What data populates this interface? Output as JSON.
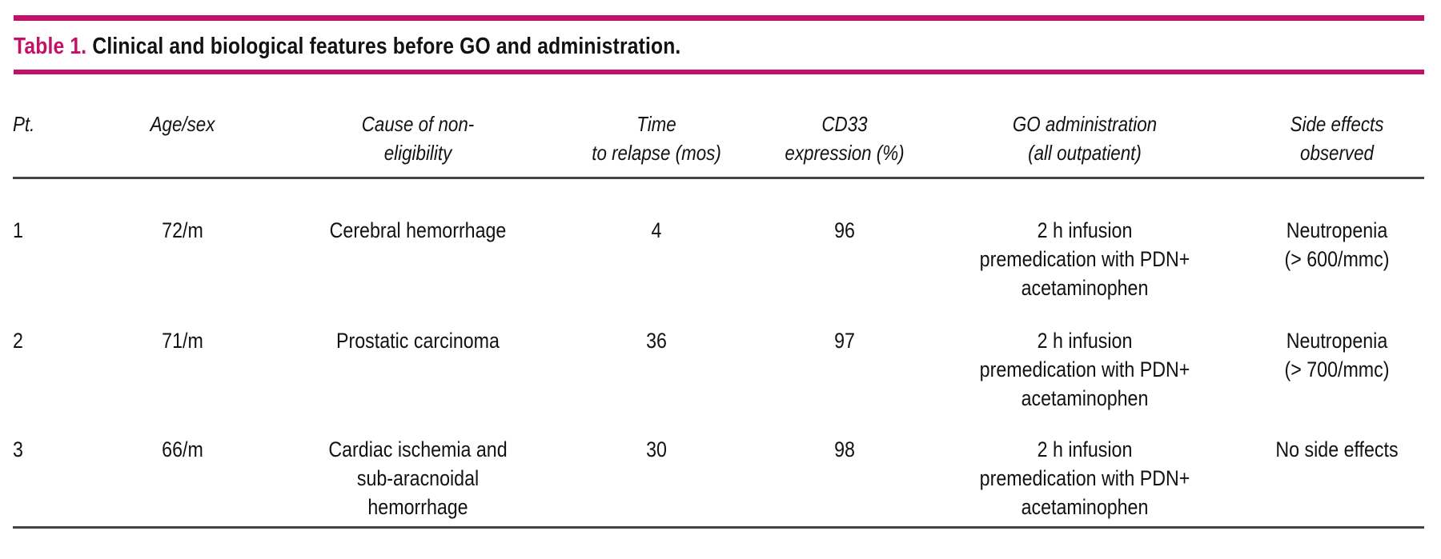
{
  "accent_color": "#c31167",
  "title": {
    "label": "Table 1.",
    "text": "Clinical and biological features before GO and administration."
  },
  "table": {
    "columns": [
      {
        "header": "Pt."
      },
      {
        "header": "Age/sex"
      },
      {
        "header": "Cause of non-\neligibility"
      },
      {
        "header": "Time\nto relapse (mos)"
      },
      {
        "header": "CD33\nexpression (%)"
      },
      {
        "header": "GO administration\n(all outpatient)"
      },
      {
        "header": "Side effects\nobserved"
      }
    ],
    "rows": [
      {
        "cells": [
          "1",
          "72/m",
          "Cerebral hemorrhage",
          "4",
          "96",
          "2 h infusion\npremedication with PDN+\nacetaminophen",
          "Neutropenia\n(> 600/mmc)"
        ]
      },
      {
        "cells": [
          "2",
          "71/m",
          "Prostatic carcinoma",
          "36",
          "97",
          "2 h infusion\npremedication with PDN+\nacetaminophen",
          "Neutropenia\n(> 700/mmc)"
        ]
      },
      {
        "cells": [
          "3",
          "66/m",
          "Cardiac ischemia and\nsub-aracnoidal hemorrhage",
          "30",
          "98",
          "2 h infusion\npremedication with PDN+\nacetaminophen",
          "No side effects"
        ]
      }
    ]
  }
}
